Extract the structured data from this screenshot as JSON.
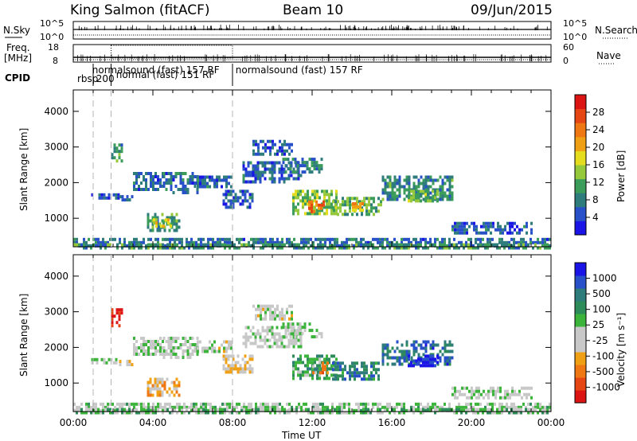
{
  "header": {
    "station": "King Salmon (fitACF)",
    "beam": "Beam 10",
    "date": "09/Jun/2015"
  },
  "status_panels": {
    "left_labels": {
      "nsky": "N.Sky",
      "freq": "Freq.",
      "freq_unit": "[MHz]",
      "cpid": "CPID"
    },
    "right_labels": {
      "nsearch": "N.Search",
      "nave": "Nave"
    },
    "nsky_ticks": [
      "10^5",
      "10^0"
    ],
    "nsearch_ticks": [
      "10^5",
      "10^0"
    ],
    "freq_ticks": [
      "18",
      "8"
    ],
    "nave_ticks": [
      "60",
      "0"
    ],
    "cpid_labels": [
      {
        "text": "rbsp",
        "hour": 0.2
      },
      {
        "text": "200",
        "hour": 1.15
      },
      {
        "text": "normalsound (fast)  157 RF",
        "hour": 0.95
      },
      {
        "text": "normal (fast)  151  RF",
        "hour": 2.15
      },
      {
        "text": "normalsound (fast)  157 RF",
        "hour": 8.15
      }
    ],
    "boundary_hours": [
      1.0,
      1.9,
      8.0
    ]
  },
  "chart_data": [
    {
      "type": "heatmap",
      "name": "power",
      "title": "",
      "xlabel": "",
      "ylabel": "Slant Range [km]",
      "xlim": [
        0,
        24
      ],
      "ylim": [
        200,
        4600
      ],
      "yticks": [
        1000,
        2000,
        3000,
        4000
      ],
      "colorbar": {
        "label": "Power [dB]",
        "ticks": [
          "4",
          "8",
          "12",
          "16",
          "20",
          "24",
          "28"
        ],
        "range": [
          0,
          32
        ],
        "colors": [
          "#1a14e6",
          "#2850c8",
          "#2e7c7c",
          "#3c9c5a",
          "#96c83c",
          "#e6dc1e",
          "#f0a014",
          "#f07814",
          "#e64614",
          "#dc1414"
        ]
      },
      "blobs": [
        {
          "h0": 0.9,
          "h1": 2.3,
          "r0": 1550,
          "r1": 1700,
          "v": 6
        },
        {
          "h0": 2.3,
          "h1": 3.0,
          "r0": 1500,
          "r1": 1650,
          "v": 5
        },
        {
          "h0": 1.9,
          "h1": 2.4,
          "r0": 2650,
          "r1": 3100,
          "v": 9
        },
        {
          "h0": 3.0,
          "h1": 4.5,
          "r0": 1800,
          "r1": 2300,
          "v": 6
        },
        {
          "h0": 4.5,
          "h1": 6.2,
          "r0": 1700,
          "r1": 2300,
          "v": 7
        },
        {
          "h0": 6.2,
          "h1": 8.0,
          "r0": 1850,
          "r1": 2200,
          "v": 6
        },
        {
          "h0": 3.7,
          "h1": 5.3,
          "r0": 650,
          "r1": 1150,
          "v": 10
        },
        {
          "h0": 4.0,
          "h1": 4.9,
          "r0": 750,
          "r1": 1000,
          "v": 16
        },
        {
          "h0": 7.5,
          "h1": 9.0,
          "r0": 1300,
          "r1": 1800,
          "v": 6
        },
        {
          "h0": 8.5,
          "h1": 11.5,
          "r0": 2000,
          "r1": 2600,
          "v": 6
        },
        {
          "h0": 9.0,
          "h1": 11.0,
          "r0": 2800,
          "r1": 3200,
          "v": 5
        },
        {
          "h0": 10.5,
          "h1": 12.5,
          "r0": 2300,
          "r1": 2700,
          "v": 8
        },
        {
          "h0": 11.0,
          "h1": 13.2,
          "r0": 1100,
          "r1": 1800,
          "v": 14
        },
        {
          "h0": 11.8,
          "h1": 12.6,
          "r0": 1200,
          "r1": 1500,
          "v": 24
        },
        {
          "h0": 13.0,
          "h1": 15.5,
          "r0": 1100,
          "r1": 1600,
          "v": 12
        },
        {
          "h0": 14.0,
          "h1": 14.6,
          "r0": 1200,
          "r1": 1450,
          "v": 20
        },
        {
          "h0": 15.5,
          "h1": 19.0,
          "r0": 1500,
          "r1": 2200,
          "v": 9
        },
        {
          "h0": 16.8,
          "h1": 18.3,
          "r0": 1500,
          "r1": 1800,
          "v": 13
        },
        {
          "h0": 19.0,
          "h1": 23.0,
          "r0": 600,
          "r1": 900,
          "v": 6
        },
        {
          "h0": 0.0,
          "h1": 24.0,
          "r0": 250,
          "r1": 450,
          "v": 7
        },
        {
          "h0": 0.0,
          "h1": 24.0,
          "r0": 200,
          "r1": 300,
          "v": 10
        }
      ]
    },
    {
      "type": "heatmap",
      "name": "velocity",
      "title": "",
      "xlabel": "Time UT",
      "ylabel": "Slant Range [km]",
      "xlim": [
        0,
        24
      ],
      "ylim": [
        200,
        4600
      ],
      "xticks": [
        "00:00",
        "04:00",
        "08:00",
        "12:00",
        "16:00",
        "20:00",
        "00:00"
      ],
      "yticks": [
        1000,
        2000,
        3000,
        4000
      ],
      "colorbar": {
        "label": "Velocity [m s⁻¹]",
        "ticks": [
          "-1000",
          "-500",
          "-100",
          "-25",
          "25",
          "100",
          "500",
          "1000"
        ],
        "range": [
          -1000,
          1000
        ],
        "colors": [
          "#dc1414",
          "#e64614",
          "#f07814",
          "#f0a014",
          "#c8c8c8",
          "#c8c8c8",
          "#3cb43c",
          "#2e8c5a",
          "#2e7c7c",
          "#2850c8",
          "#1a14e6"
        ]
      },
      "blobs": [
        {
          "h0": 0.9,
          "h1": 2.3,
          "r0": 1550,
          "r1": 1700,
          "v": 0
        },
        {
          "h0": 2.3,
          "h1": 3.0,
          "r0": 1500,
          "r1": 1650,
          "v": -150
        },
        {
          "h0": 1.9,
          "h1": 2.4,
          "r0": 2650,
          "r1": 3100,
          "v": -900
        },
        {
          "h0": 3.0,
          "h1": 4.5,
          "r0": 1800,
          "r1": 2300,
          "v": 0
        },
        {
          "h0": 4.5,
          "h1": 6.2,
          "r0": 1700,
          "r1": 2300,
          "v": 0
        },
        {
          "h0": 6.2,
          "h1": 8.0,
          "r0": 1850,
          "r1": 2200,
          "v": -50
        },
        {
          "h0": 3.7,
          "h1": 5.3,
          "r0": 650,
          "r1": 1150,
          "v": -300
        },
        {
          "h0": 7.5,
          "h1": 9.0,
          "r0": 1300,
          "r1": 1800,
          "v": -200
        },
        {
          "h0": 8.5,
          "h1": 11.5,
          "r0": 2000,
          "r1": 2600,
          "v": 0
        },
        {
          "h0": 9.0,
          "h1": 11.0,
          "r0": 2800,
          "r1": 3200,
          "v": -80
        },
        {
          "h0": 10.5,
          "h1": 12.5,
          "r0": 2300,
          "r1": 2700,
          "v": 0
        },
        {
          "h0": 11.0,
          "h1": 13.2,
          "r0": 1100,
          "r1": 1800,
          "v": 300
        },
        {
          "h0": 12.0,
          "h1": 12.8,
          "r0": 1300,
          "r1": 1600,
          "v": -400
        },
        {
          "h0": 13.0,
          "h1": 15.5,
          "r0": 1100,
          "r1": 1600,
          "v": 500
        },
        {
          "h0": 15.5,
          "h1": 19.0,
          "r0": 1500,
          "r1": 2200,
          "v": 600
        },
        {
          "h0": 16.8,
          "h1": 18.3,
          "r0": 1500,
          "r1": 1800,
          "v": 900
        },
        {
          "h0": 19.0,
          "h1": 23.0,
          "r0": 600,
          "r1": 900,
          "v": 0
        },
        {
          "h0": 0.0,
          "h1": 24.0,
          "r0": 250,
          "r1": 450,
          "v": 50
        },
        {
          "h0": 0.0,
          "h1": 24.0,
          "r0": 200,
          "r1": 300,
          "v": 150
        }
      ]
    }
  ]
}
